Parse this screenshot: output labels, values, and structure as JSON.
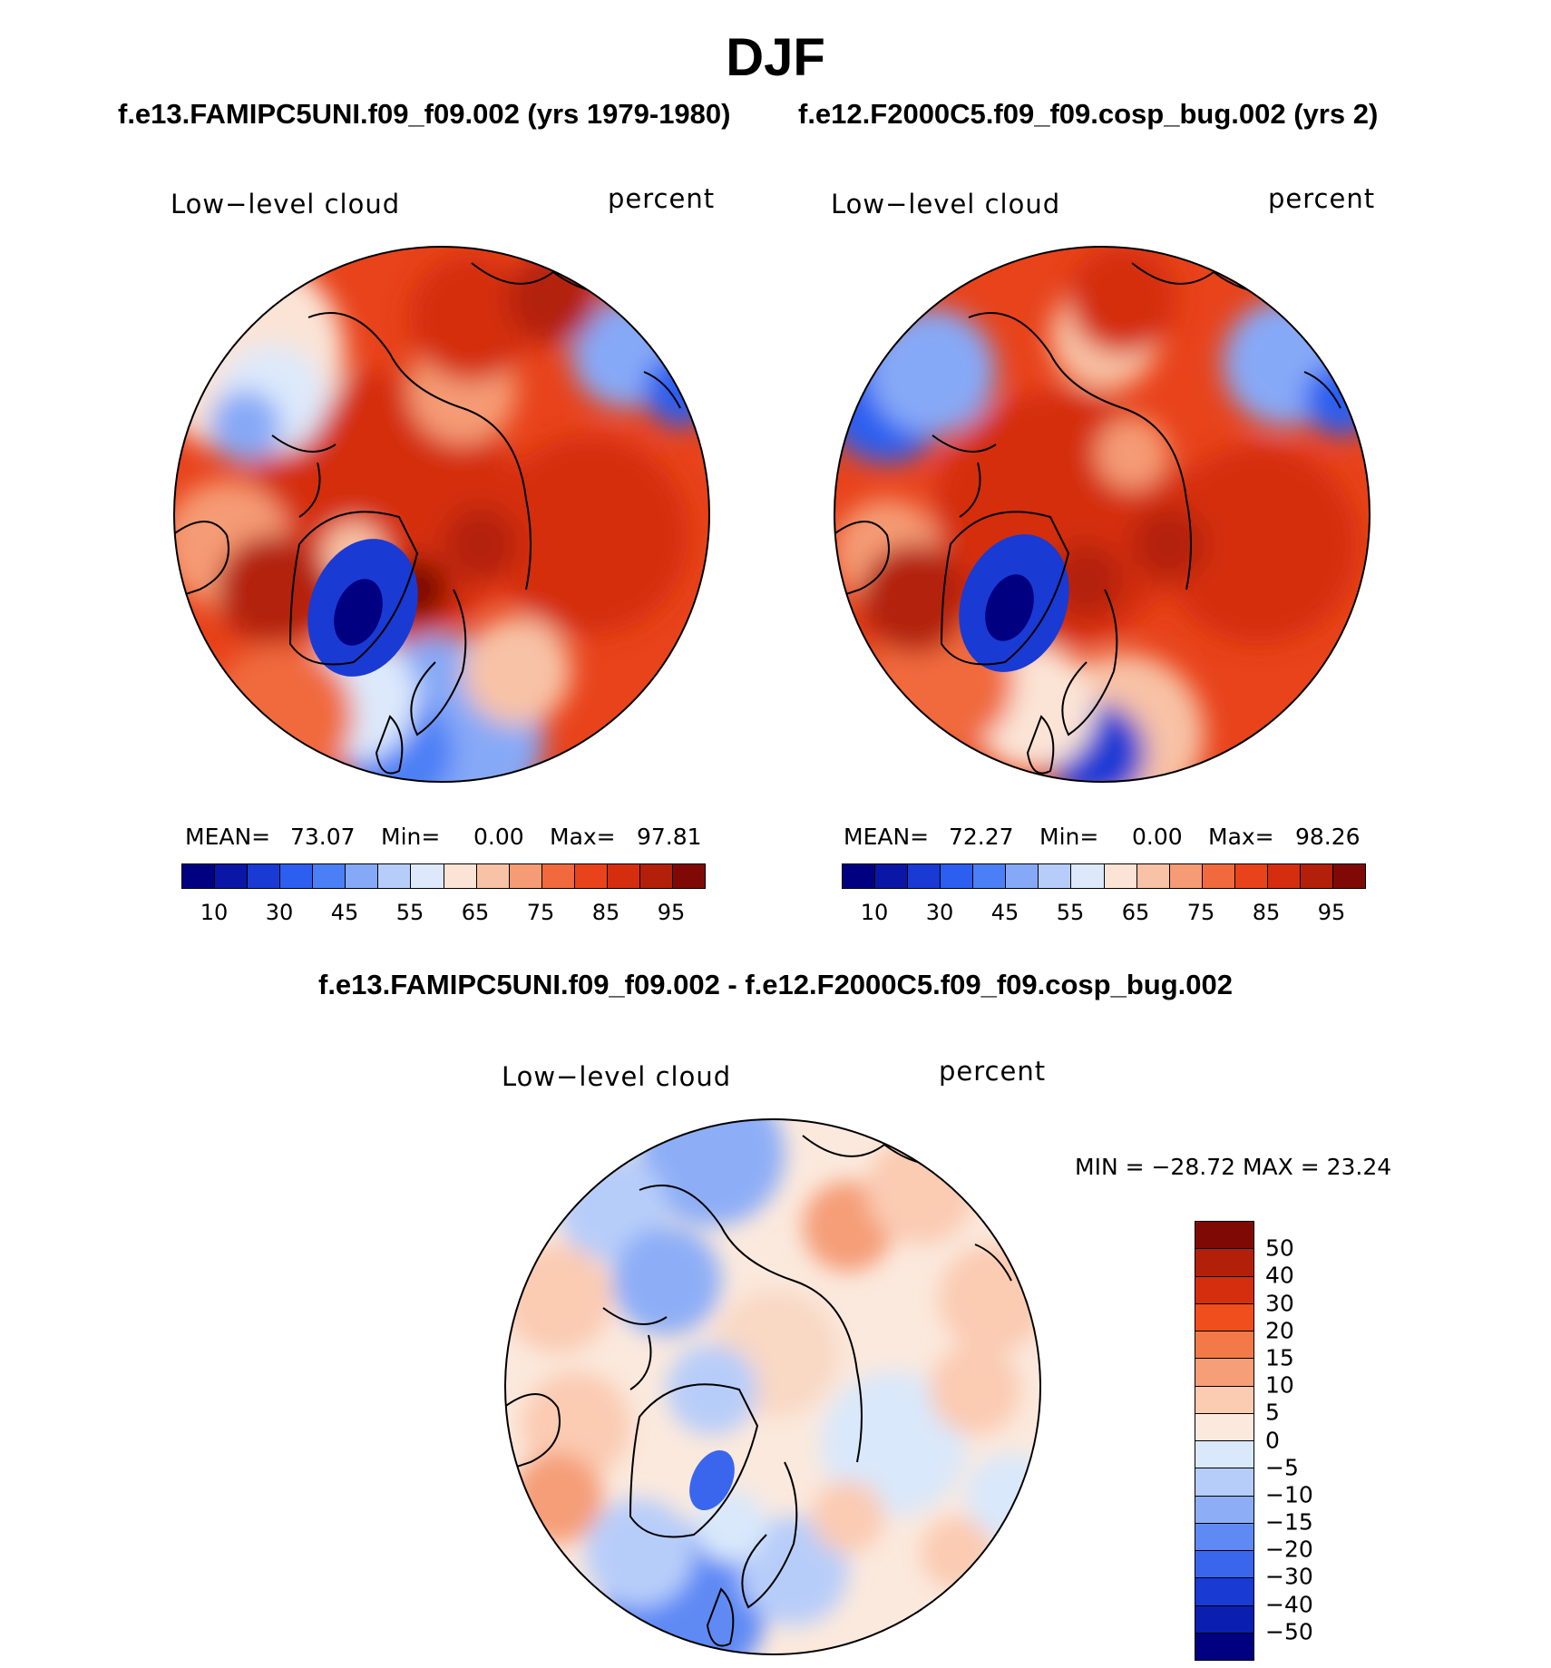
{
  "season": "DJF",
  "case1_label": "f.e13.FAMIPC5UNI.f09_f09.002 (yrs 1979-1980)",
  "case2_label": "f.e12.F2000C5.f09_f09.cosp_bug.002 (yrs 2)",
  "diff_label": "f.e13.FAMIPC5UNI.f09_f09.002 - f.e12.F2000C5.f09_f09.cosp_bug.002",
  "panels": {
    "left": {
      "variable": "Low−level cloud",
      "units": "percent",
      "mean_label": "MEAN=",
      "mean": "73.07",
      "min_label": "Min=",
      "min": "0.00",
      "max_label": "Max=",
      "max": "97.81"
    },
    "right": {
      "variable": "Low−level cloud",
      "units": "percent",
      "mean_label": "MEAN=",
      "mean": "72.27",
      "min_label": "Min=",
      "min": "0.00",
      "max_label": "Max=",
      "max": "98.26"
    },
    "diff": {
      "variable": "Low−level cloud",
      "units": "percent",
      "minmax": "MIN = −28.72 MAX =   23.24"
    }
  },
  "colorbar_abs": {
    "colors": [
      "#000080",
      "#0a17a6",
      "#1a3ad4",
      "#2c5ef0",
      "#4b7ff5",
      "#86a9f7",
      "#b7cdf9",
      "#dde9fb",
      "#fbe4d6",
      "#f8c2a6",
      "#f59b75",
      "#f06a3e",
      "#e8431b",
      "#d42e0e",
      "#b3200a",
      "#7f0a05"
    ],
    "tick_labels": [
      "10",
      "30",
      "45",
      "55",
      "65",
      "75",
      "85",
      "95"
    ]
  },
  "colorbar_diff": {
    "colors": [
      "#7f0a05",
      "#b3200a",
      "#d42e0e",
      "#f04e1d",
      "#f37a48",
      "#f59e78",
      "#fbcbb2",
      "#fbe9dd",
      "#d9e8fb",
      "#b7cdf9",
      "#8daef7",
      "#5f8af4",
      "#3a66ee",
      "#1a3ad4",
      "#0a1fb0",
      "#000080"
    ],
    "labels": [
      "50",
      "40",
      "30",
      "20",
      "15",
      "10",
      "5",
      "0",
      "−5",
      "−10",
      "−15",
      "−20",
      "−30",
      "−40",
      "−50"
    ]
  }
}
